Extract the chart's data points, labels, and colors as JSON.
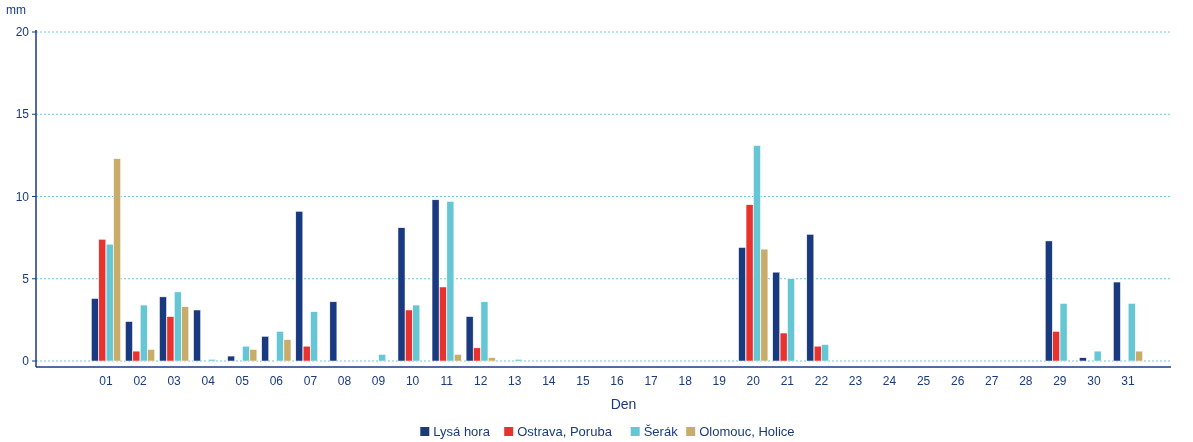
{
  "chart_data": {
    "type": "bar",
    "xlabel": "Den",
    "ylabel": "mm",
    "categories": [
      "01",
      "02",
      "03",
      "04",
      "05",
      "06",
      "07",
      "08",
      "09",
      "10",
      "11",
      "12",
      "13",
      "14",
      "15",
      "16",
      "17",
      "18",
      "19",
      "20",
      "21",
      "22",
      "23",
      "24",
      "25",
      "26",
      "27",
      "28",
      "29",
      "30",
      "31"
    ],
    "series": [
      {
        "name": "Lysá hora",
        "color": "#1a3a80",
        "values": [
          3.8,
          2.4,
          3.9,
          3.1,
          0.3,
          1.5,
          9.1,
          3.6,
          0,
          8.1,
          9.8,
          2.7,
          0,
          0,
          0,
          0,
          0,
          0,
          0,
          6.9,
          5.4,
          7.7,
          0,
          0,
          0,
          0,
          0,
          0,
          7.3,
          0.2,
          4.8
        ]
      },
      {
        "name": "Ostrava, Poruba",
        "color": "#e8322e",
        "values": [
          7.4,
          0.6,
          2.7,
          0,
          0,
          0,
          0.9,
          0,
          0,
          3.1,
          4.5,
          0.8,
          0,
          0,
          0,
          0,
          0,
          0,
          0,
          9.5,
          1.7,
          0.9,
          0,
          0,
          0,
          0,
          0,
          0,
          1.8,
          0,
          0
        ]
      },
      {
        "name": "Šerák",
        "color": "#66c6d4",
        "values": [
          7.1,
          3.4,
          4.2,
          0.1,
          0.9,
          1.8,
          3.0,
          0,
          0.4,
          3.4,
          9.7,
          3.6,
          0.1,
          0,
          0,
          0,
          0,
          0,
          0,
          13.1,
          5.0,
          1.0,
          0,
          0,
          0,
          0,
          0,
          0,
          3.5,
          0.6,
          3.5
        ]
      },
      {
        "name": "Olomouc, Holice",
        "color": "#c8ac6a",
        "values": [
          12.3,
          0.7,
          3.3,
          0,
          0.7,
          1.3,
          0,
          0,
          0,
          0,
          0.4,
          0.2,
          0,
          0,
          0,
          0,
          0,
          0,
          0,
          6.8,
          0,
          0,
          0,
          0,
          0,
          0,
          0,
          0,
          0,
          0,
          0.6
        ]
      }
    ],
    "ylim": [
      0,
      20
    ],
    "yticks": [
      0,
      5,
      10,
      15,
      20
    ],
    "grid": "y",
    "legend": "bottom"
  }
}
